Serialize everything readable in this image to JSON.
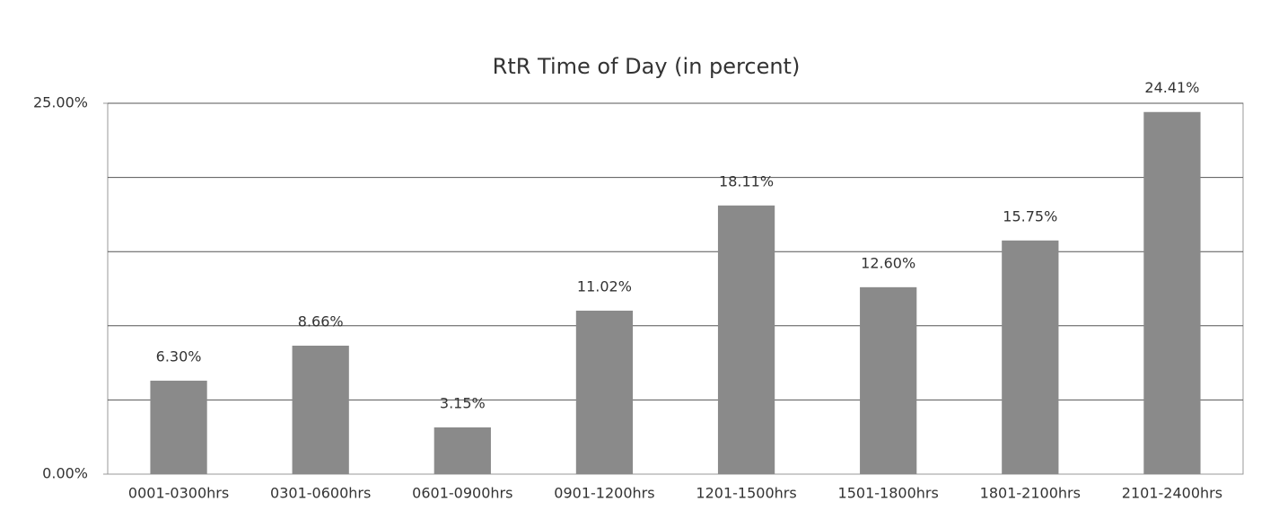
{
  "chart_data": {
    "type": "bar",
    "title": "RtR Time of Day (in percent)",
    "categories": [
      "0001-0300hrs",
      "0301-0600hrs",
      "0601-0900hrs",
      "0901-1200hrs",
      "1201-1500hrs",
      "1501-1800hrs",
      "1801-2100hrs",
      "2101-2400hrs"
    ],
    "values": [
      6.3,
      8.66,
      3.15,
      11.02,
      18.11,
      12.6,
      15.75,
      24.41
    ],
    "value_labels": [
      "6.30%",
      "8.66%",
      "3.15%",
      "11.02%",
      "18.11%",
      "12.60%",
      "15.75%",
      "24.41%"
    ],
    "color": "#8a8a8a",
    "ylim": [
      0,
      25
    ],
    "yticks": [
      {
        "value": 0,
        "label": "0.00%"
      },
      {
        "value": 25,
        "label": "25.00%"
      }
    ],
    "gridlines": [
      5,
      10,
      15,
      20,
      25
    ],
    "grid": true
  }
}
